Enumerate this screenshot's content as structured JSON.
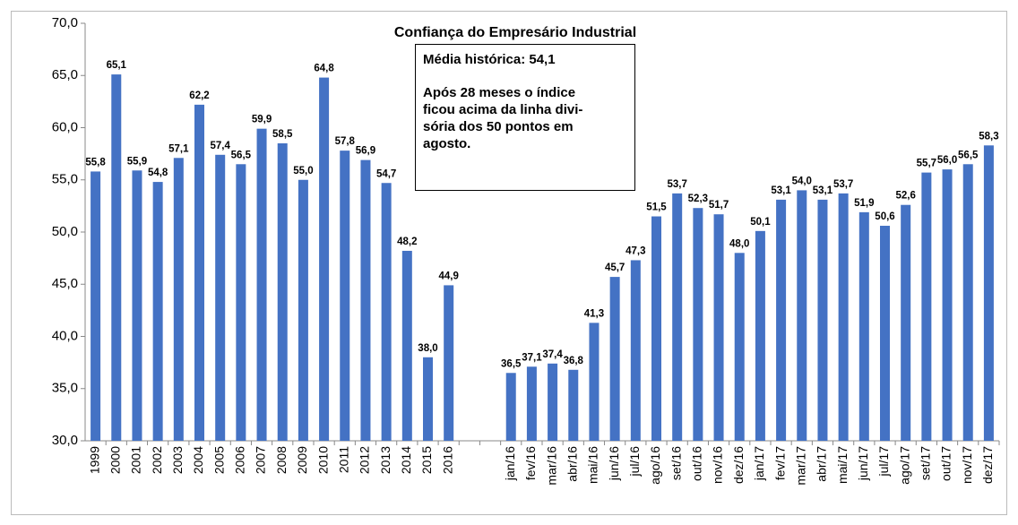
{
  "chart_data": {
    "type": "bar",
    "title": "Confiança do Empresário Industrial",
    "annotation": {
      "heading": "Média histórica: 54,1",
      "lines": [
        "Após 28 meses o índice",
        "ficou acima da linha divi-",
        "sória dos 50 pontos em",
        "agosto."
      ]
    },
    "categories": [
      "1999",
      "2000",
      "2001",
      "2002",
      "2003",
      "2004",
      "2005",
      "2006",
      "2007",
      "2008",
      "2009",
      "2010",
      "2011",
      "2012",
      "2013",
      "2014",
      "2015",
      "2016",
      null,
      null,
      "jan/16",
      "fev/16",
      "mar/16",
      "abr/16",
      "mai/16",
      "jun/16",
      "jul/16",
      "ago/16",
      "set/16",
      "out/16",
      "nov/16",
      "dez/16",
      "jan/17",
      "fev/17",
      "mar/17",
      "abr/17",
      "mai/17",
      "jun/17",
      "jul/17",
      "ago/17",
      "set/17",
      "out/17",
      "nov/17",
      "dez/17"
    ],
    "values": [
      55.8,
      65.1,
      55.9,
      54.8,
      57.1,
      62.2,
      57.4,
      56.5,
      59.9,
      58.5,
      55.0,
      64.8,
      57.8,
      56.9,
      54.7,
      48.2,
      38.0,
      44.9,
      null,
      null,
      36.5,
      37.1,
      37.4,
      36.8,
      41.3,
      45.7,
      47.3,
      51.5,
      53.7,
      52.3,
      51.7,
      48.0,
      50.1,
      53.1,
      54.0,
      53.1,
      53.7,
      51.9,
      50.6,
      52.6,
      55.7,
      56.0,
      56.5,
      58.3
    ],
    "value_labels": [
      "55,8",
      "65,1",
      "55,9",
      "54,8",
      "57,1",
      "62,2",
      "57,4",
      "56,5",
      "59,9",
      "58,5",
      "55,0",
      "64,8",
      "57,8",
      "56,9",
      "54,7",
      "48,2",
      "38,0",
      "44,9",
      null,
      null,
      "36,5",
      "37,1",
      "37,4",
      "36,8",
      "41,3",
      "45,7",
      "47,3",
      "51,5",
      "53,7",
      "52,3",
      "51,7",
      "48,0",
      "50,1",
      "53,1",
      "54,0",
      "53,1",
      "53,7",
      "51,9",
      "50,6",
      "52,6",
      "55,7",
      "56,0",
      "56,5",
      "58,3"
    ],
    "color": "#4472c4",
    "ylim": [
      30,
      70
    ],
    "yticks": [
      {
        "value": 30,
        "label": "30,0"
      },
      {
        "value": 35,
        "label": "35,0"
      },
      {
        "value": 40,
        "label": "40,0"
      },
      {
        "value": 45,
        "label": "45,0"
      },
      {
        "value": 50,
        "label": "50,0"
      },
      {
        "value": 55,
        "label": "55,0"
      },
      {
        "value": 60,
        "label": "60,0"
      },
      {
        "value": 65,
        "label": "65,0"
      },
      {
        "value": 70,
        "label": "70,0"
      }
    ],
    "grid": false
  }
}
